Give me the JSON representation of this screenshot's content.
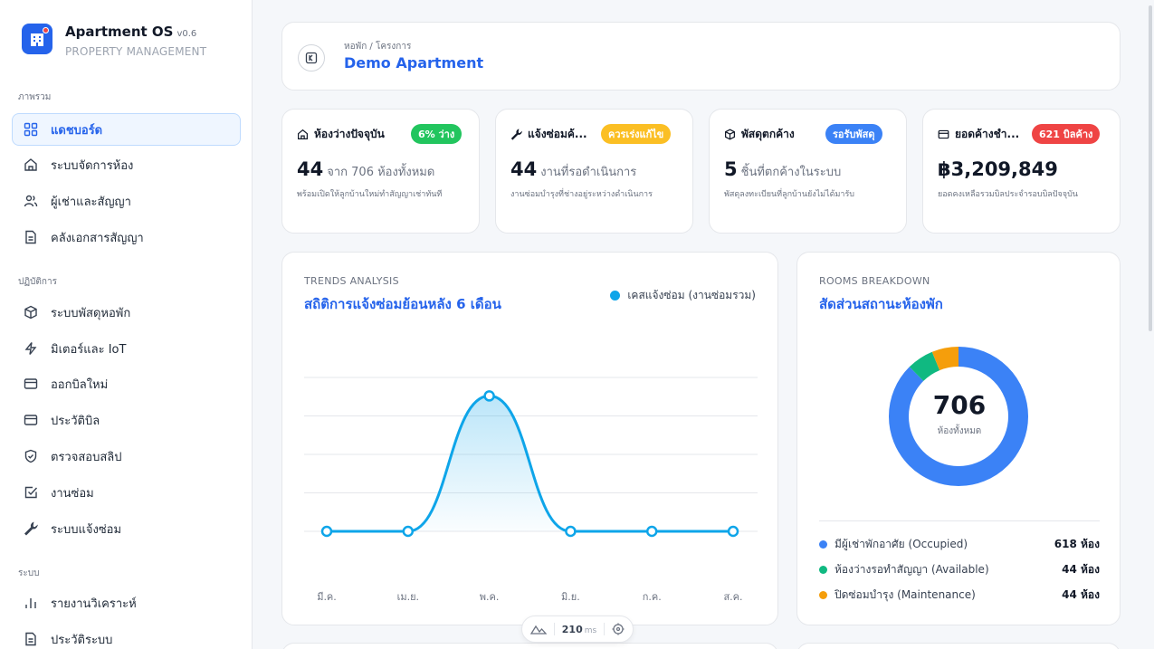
{
  "app": {
    "title": "Apartment OS",
    "version": "v0.6",
    "subtitle": "PROPERTY MANAGEMENT"
  },
  "sidebar": {
    "sections": [
      {
        "label": "ภาพรวม"
      },
      {
        "label": "ปฏิบัติการ"
      },
      {
        "label": "ระบบ"
      }
    ],
    "items": [
      {
        "label": "แดชบอร์ด",
        "icon": "dashboard-icon",
        "active": true
      },
      {
        "label": "ระบบจัดการห้อง",
        "icon": "home-icon"
      },
      {
        "label": "ผู้เช่าและสัญญา",
        "icon": "users-icon"
      },
      {
        "label": "คลังเอกสารสัญญา",
        "icon": "document-icon"
      },
      {
        "label": "ระบบพัสดุหอพัก",
        "icon": "package-icon"
      },
      {
        "label": "มิเตอร์และ IoT",
        "icon": "bolt-icon"
      },
      {
        "label": "ออกบิลใหม่",
        "icon": "card-icon"
      },
      {
        "label": "ประวัติบิล",
        "icon": "card-icon"
      },
      {
        "label": "ตรวจสอบสลิป",
        "icon": "shield-check-icon"
      },
      {
        "label": "งานซ่อม",
        "icon": "checkbox-icon"
      },
      {
        "label": "ระบบแจ้งซ่อม",
        "icon": "wrench-icon"
      },
      {
        "label": "รายงานวิเคราะห์",
        "icon": "bar-chart-icon"
      },
      {
        "label": "ประวัติระบบ",
        "icon": "document-icon"
      }
    ]
  },
  "header": {
    "breadcrumb": "หอพัก / โครงการ",
    "title": "Demo Apartment"
  },
  "stats": [
    {
      "title": "ห้องว่างปัจจุบัน",
      "badge": "6% ว่าง",
      "badge_color": "#22c55e",
      "value": "44",
      "unit": "จาก 706 ห้องทั้งหมด",
      "desc": "พร้อมเปิดให้ลูกบ้านใหม่ทำสัญญาเช่าทันที",
      "icon": "home-icon"
    },
    {
      "title": "แจ้งซ่อมค้...",
      "badge": "ควรเร่งแก้ไข",
      "badge_color": "#fbbf24",
      "value": "44",
      "unit": "งานที่รอดำเนินการ",
      "desc": "งานซ่อมบำรุงที่ช่างอยู่ระหว่างดำเนินการ",
      "icon": "wrench-icon"
    },
    {
      "title": "พัสดุตกค้าง",
      "badge": "รอรับพัสดุ",
      "badge_color": "#3b82f6",
      "value": "5",
      "unit": "ชิ้นที่ตกค้างในระบบ",
      "desc": "พัสดุลงทะเบียนที่ลูกบ้านยังไม่ได้มารับ",
      "icon": "package-icon"
    },
    {
      "title": "ยอดค้างชำ...",
      "badge": "621 บิลค้าง",
      "badge_color": "#ef4444",
      "value": "฿3,209,849",
      "unit": "",
      "desc": "ยอดคงเหลือรวมบิลประจำรอบบิลปัจจุบัน",
      "icon": "card-icon"
    }
  ],
  "trend": {
    "eyebrow": "TRENDS ANALYSIS",
    "title": "สถิติการแจ้งซ่อมย้อนหลัง 6 เดือน",
    "legend": "เคสแจ้งซ่อม (งานซ่อมรวม)",
    "color": "#0ea5e9"
  },
  "chart_data": {
    "type": "line",
    "categories": [
      "มี.ค.",
      "เม.ย.",
      "พ.ค.",
      "มิ.ย.",
      "ก.ค.",
      "ส.ค."
    ],
    "series": [
      {
        "name": "เคสแจ้งซ่อม (งานซ่อมรวม)",
        "values": [
          0,
          0,
          44,
          0,
          0,
          0
        ]
      }
    ],
    "ylim": [
      0,
      50
    ],
    "grid": true,
    "legend_position": "top-right"
  },
  "rooms": {
    "eyebrow": "ROOMS BREAKDOWN",
    "title": "สัดส่วนสถานะห้องพัก",
    "total": "706",
    "total_label": "ห้องทั้งหมด",
    "breakdown": [
      {
        "label": "มีผู้เช่าพักอาศัย (Occupied)",
        "value": "618 ห้อง",
        "count": 618,
        "color": "#3b82f6"
      },
      {
        "label": "ห้องว่างรอทำสัญญา (Available)",
        "value": "44 ห้อง",
        "count": 44,
        "color": "#10b981"
      },
      {
        "label": "ปิดซ่อมบำรุง (Maintenance)",
        "value": "44 ห้อง",
        "count": 44,
        "color": "#f59e0b"
      }
    ]
  },
  "perf": {
    "value": "210",
    "unit": "ms"
  }
}
